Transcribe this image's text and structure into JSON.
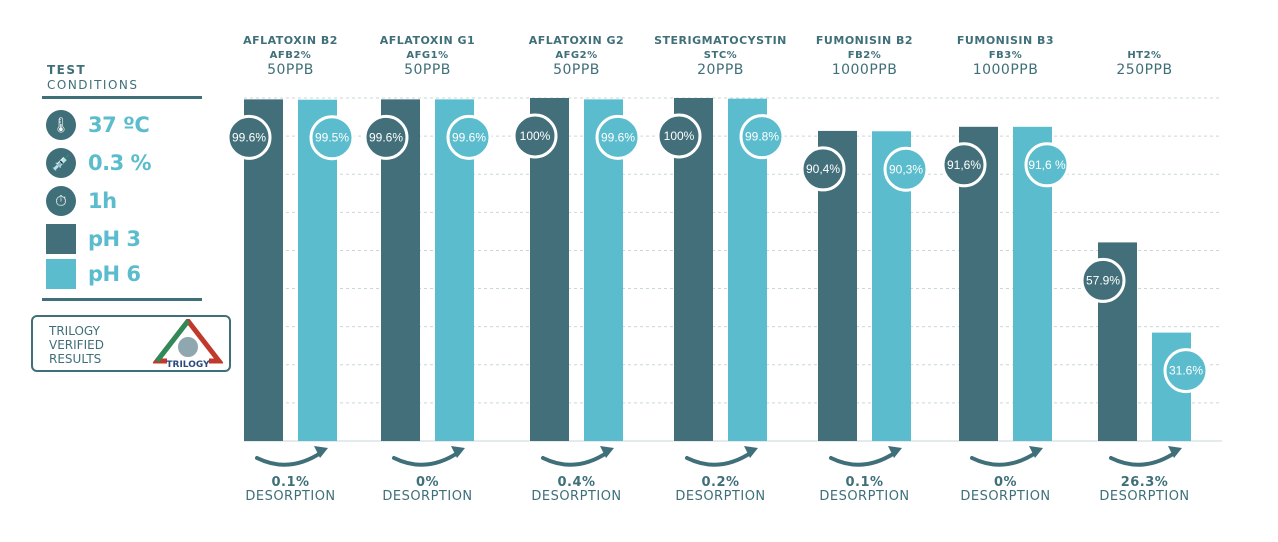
{
  "legend_panel": {
    "title_line1": "TEST",
    "title_line2": "CONDITIONS",
    "conditions": [
      {
        "icon": "thermometer-icon",
        "label": "37 ºC"
      },
      {
        "icon": "syringe-icon",
        "label": "0.3 %"
      },
      {
        "icon": "stopwatch-icon",
        "label": "1h"
      },
      {
        "icon": "ph3-swatch",
        "label": "pH 3"
      },
      {
        "icon": "ph6-swatch",
        "label": "pH 6"
      }
    ],
    "badge_lines": [
      "TRILOGY",
      "VERIFIED",
      "RESULTS"
    ],
    "badge_logo_text": "TRILOGY"
  },
  "colors": {
    "ph3": "#426f79",
    "ph6": "#5bbccd",
    "text": "#3f6f78",
    "grid": "#c9d7da"
  },
  "chart_data": {
    "type": "bar",
    "ylim": [
      0,
      100
    ],
    "grid": true,
    "series_keys": [
      "pH 3",
      "pH 6"
    ],
    "categories": [
      {
        "name": "AFLATOXIN B2",
        "code": "AFB2%",
        "dose": "50PPB",
        "values": [
          99.6,
          99.5
        ],
        "labels": [
          "99.6%",
          "99.5%"
        ],
        "desorption": "0.1%"
      },
      {
        "name": "AFLATOXIN G1",
        "code": "AFG1%",
        "dose": "50PPB",
        "values": [
          99.6,
          99.6
        ],
        "labels": [
          "99.6%",
          "99.6%"
        ],
        "desorption": "0%"
      },
      {
        "name": "AFLATOXIN G2",
        "code": "AFG2%",
        "dose": "50PPB",
        "values": [
          100,
          99.6
        ],
        "labels": [
          "100%",
          "99.6%"
        ],
        "desorption": "0.4%"
      },
      {
        "name": "STERIGMATOCYSTIN",
        "code": "STC%",
        "dose": "20PPB",
        "values": [
          100,
          99.8
        ],
        "labels": [
          "100%",
          "99.8%"
        ],
        "desorption": "0.2%"
      },
      {
        "name": "FUMONISIN B2",
        "code": "FB2%",
        "dose": "1000PPB",
        "values": [
          90.4,
          90.3
        ],
        "labels": [
          "90,4%",
          "90,3%"
        ],
        "desorption": "0.1%"
      },
      {
        "name": "FUMONISIN B3",
        "code": "FB3%",
        "dose": "1000PPB",
        "values": [
          91.6,
          91.6
        ],
        "labels": [
          "91,6%",
          "91,6 %"
        ],
        "desorption": "0%"
      },
      {
        "name": "",
        "code": "HT2%",
        "dose": "250PPB",
        "values": [
          57.9,
          31.6
        ],
        "labels": [
          "57.9%",
          "31.6%"
        ],
        "desorption": "26.3%"
      }
    ],
    "desorption_label": "DESORPTION"
  }
}
